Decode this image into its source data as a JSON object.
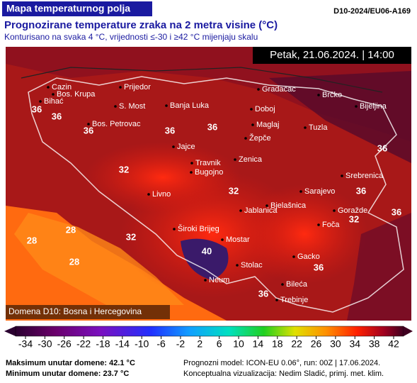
{
  "header": {
    "title": "Mapa temperaturnog polja",
    "code": "D10-2024/EU06-A169",
    "subtitle": "Prognozirane temperature zraka na 2 metra visine (°C)",
    "description": "Konturisano na svaka 4 °C, vrijednosti ≤-30 i ≥42 °C mijenjaju skalu"
  },
  "map": {
    "timestamp": "Petak, 21.06.2024. | 14:00",
    "domain": "Domena D10: Bosna i Hercegovina",
    "cities": [
      "Cazin",
      "Bos. Krupa",
      "Prijedor",
      "Bihać",
      "S. Most",
      "Banja Luka",
      "Gradačac",
      "Brčko",
      "Doboj",
      "Bijeljina",
      "Bos. Petrovac",
      "Maglaj",
      "Tuzla",
      "Žepče",
      "Jajce",
      "Zenica",
      "Travnik",
      "Bugojno",
      "Srebrenica",
      "Livno",
      "Sarajevo",
      "Jablanica",
      "Bjelašnica",
      "Goražde",
      "Foča",
      "Široki Brijeg",
      "Mostar",
      "Gacko",
      "Stolac",
      "Neum",
      "Bileća",
      "Trebinje"
    ],
    "contour_labels": [
      36,
      36,
      36,
      36,
      36,
      36,
      36,
      36,
      32,
      32,
      32,
      28,
      28,
      40,
      36,
      36,
      28,
      32
    ]
  },
  "colorbar": {
    "ticks": [
      -34,
      -30,
      -26,
      -22,
      -18,
      -14,
      -10,
      -6,
      -2,
      2,
      6,
      10,
      14,
      18,
      22,
      26,
      30,
      34,
      38,
      42
    ]
  },
  "footer": {
    "max": "Maksimum unutar domene: 42.1 °C",
    "min": "Minimum unutar domene: 23.7 °C",
    "model": "Prognozni model: ICON-EU 0.06°, run: 00Z | 17.06.2024.",
    "credit": "Konceptualna vizualizacija: Nedim Sladić, primj. met. klim."
  }
}
